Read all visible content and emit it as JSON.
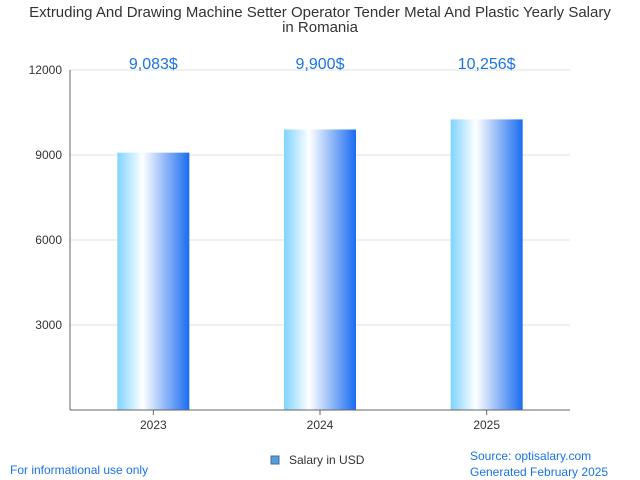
{
  "chart_data": {
    "type": "bar",
    "title": "Extruding And Drawing Machine Setter Operator Tender Metal And Plastic Yearly Salary in Romania",
    "title_lines": [
      "Extruding And Drawing Machine Setter Operator Tender Metal And Plastic Yearly Salary",
      "in Romania"
    ],
    "categories": [
      "2023",
      "2024",
      "2025"
    ],
    "series": [
      {
        "name": "Salary in USD",
        "values": [
          9083,
          9900,
          10256
        ]
      }
    ],
    "data_labels": [
      "9,083$",
      "9,900$",
      "10,256$"
    ],
    "yticks": [
      "3000",
      "6000",
      "9000",
      "12000"
    ],
    "ylim": [
      0,
      12000
    ],
    "grid": true,
    "legend_position": "bottom",
    "colors": {
      "bar_light": "#bfe8ff",
      "bar_mid": "#ffffff",
      "bar_dark": "#1a73e8",
      "label": "#1a73e8",
      "legend_swatch": "#5b9bd5"
    }
  },
  "footer": {
    "left": "For informational use only",
    "source": "Source: optisalary.com",
    "generated": "Generated February 2025"
  }
}
